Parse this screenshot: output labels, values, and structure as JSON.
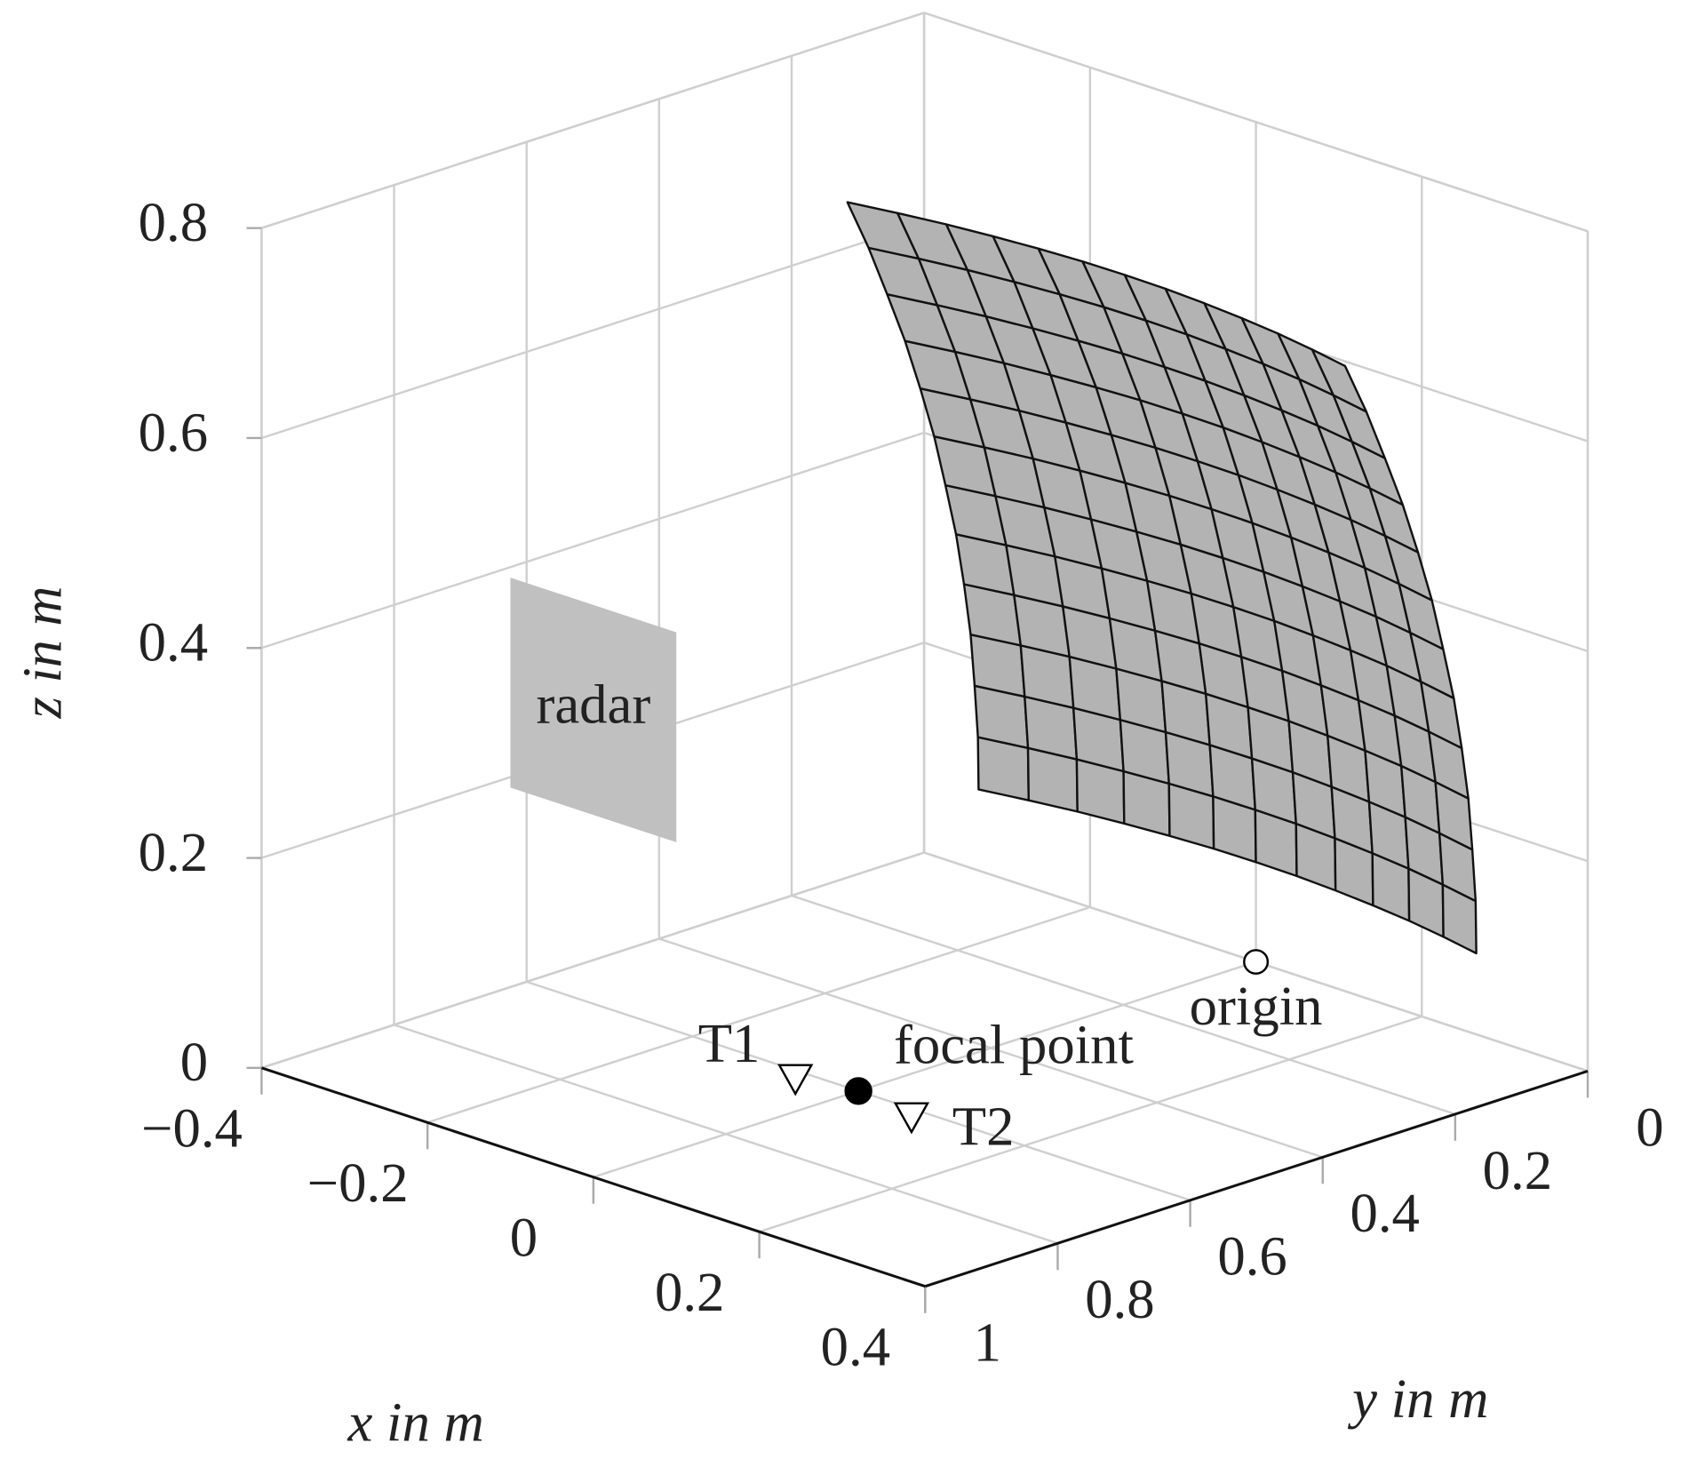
{
  "chart_data": {
    "type": "surface3d",
    "xlabel": "x in m",
    "ylabel": "y in m",
    "zlabel": "z in m",
    "xlim": [
      -0.4,
      0.4
    ],
    "ylim": [
      0,
      1
    ],
    "zlim": [
      0,
      0.8
    ],
    "xticks": [
      {
        "value": -0.4,
        "label": "−0.4"
      },
      {
        "value": -0.2,
        "label": "−0.2"
      },
      0,
      0.2,
      0.4
    ],
    "yticks": [
      0,
      0.2,
      0.4,
      0.6,
      0.8,
      1
    ],
    "zticks": [
      0,
      0.2,
      0.4,
      0.6,
      0.8
    ],
    "grid": true,
    "surface": {
      "color": "#b3b3b3",
      "x": [
        -0.3,
        -0.25,
        -0.2,
        -0.15,
        -0.1,
        -0.05,
        0,
        0.05,
        0.1,
        0.15,
        0.2,
        0.25,
        0.3
      ],
      "z": [
        0.095,
        0.145,
        0.195,
        0.245,
        0.295,
        0.345,
        0.395,
        0.445,
        0.495,
        0.545,
        0.595,
        0.645,
        0.695
      ],
      "y": [
        [
          0.043,
          0.03,
          0.019,
          0.011,
          0.005,
          0.001,
          0,
          0.001,
          0.005,
          0.011,
          0.019,
          0.03,
          0.043
        ],
        [
          0.044,
          0.031,
          0.02,
          0.012,
          0.006,
          0.002,
          0.001,
          0.002,
          0.006,
          0.012,
          0.02,
          0.031,
          0.044
        ],
        [
          0.049,
          0.036,
          0.025,
          0.017,
          0.011,
          0.007,
          0.006,
          0.007,
          0.011,
          0.017,
          0.025,
          0.036,
          0.049
        ],
        [
          0.055,
          0.042,
          0.031,
          0.023,
          0.017,
          0.013,
          0.012,
          0.013,
          0.017,
          0.023,
          0.031,
          0.042,
          0.055
        ],
        [
          0.065,
          0.052,
          0.041,
          0.033,
          0.027,
          0.023,
          0.022,
          0.023,
          0.027,
          0.033,
          0.041,
          0.052,
          0.065
        ],
        [
          0.077,
          0.064,
          0.053,
          0.045,
          0.039,
          0.035,
          0.034,
          0.035,
          0.039,
          0.045,
          0.053,
          0.064,
          0.077
        ],
        [
          0.093,
          0.08,
          0.069,
          0.061,
          0.055,
          0.051,
          0.05,
          0.051,
          0.055,
          0.061,
          0.069,
          0.08,
          0.093
        ],
        [
          0.11,
          0.097,
          0.086,
          0.078,
          0.072,
          0.068,
          0.067,
          0.068,
          0.072,
          0.078,
          0.086,
          0.097,
          0.11
        ],
        [
          0.131,
          0.118,
          0.107,
          0.099,
          0.093,
          0.089,
          0.088,
          0.089,
          0.093,
          0.099,
          0.107,
          0.118,
          0.131
        ],
        [
          0.154,
          0.141,
          0.13,
          0.122,
          0.116,
          0.112,
          0.111,
          0.112,
          0.116,
          0.122,
          0.13,
          0.141,
          0.154
        ],
        [
          0.181,
          0.168,
          0.157,
          0.149,
          0.143,
          0.139,
          0.138,
          0.139,
          0.143,
          0.149,
          0.157,
          0.168,
          0.181
        ],
        [
          0.209,
          0.196,
          0.185,
          0.177,
          0.171,
          0.167,
          0.166,
          0.167,
          0.171,
          0.177,
          0.185,
          0.196,
          0.209
        ],
        [
          0.241,
          0.228,
          0.217,
          0.209,
          0.203,
          0.199,
          0.198,
          0.199,
          0.203,
          0.209,
          0.217,
          0.228,
          0.241
        ]
      ]
    },
    "radar": {
      "label": "radar",
      "color": "#c0c0c0",
      "x": [
        -0.1,
        0.1
      ],
      "y": 1,
      "z": [
        0.345,
        0.545
      ]
    },
    "points": [
      {
        "name": "origin",
        "x": 0,
        "y": 0,
        "z": 0,
        "marker": "open-circle"
      },
      {
        "name": "focal point",
        "x": 0,
        "y": 0.6,
        "z": 0,
        "marker": "filled-circle"
      },
      {
        "name": "T1",
        "x": -0.06,
        "y": 0.62,
        "z": 0,
        "marker": "triangle-down"
      },
      {
        "name": "T2",
        "x": 0.08,
        "y": 0.62,
        "z": 0,
        "marker": "triangle-down"
      }
    ]
  }
}
